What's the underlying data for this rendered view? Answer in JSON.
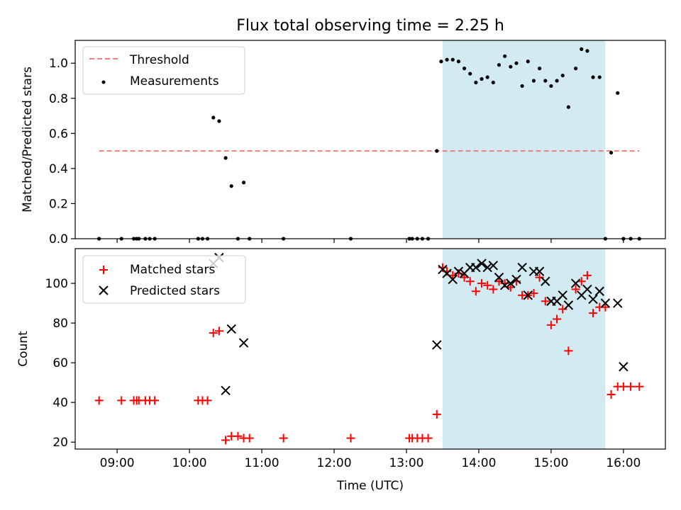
{
  "chart_data": {
    "type": "scatter",
    "title": "Flux total observing time = 2.25 h",
    "xlabel": "Time (UTC)",
    "x_unit": "hour_of_day_utc",
    "x_ticks": [
      {
        "value": 9,
        "label": "09:00"
      },
      {
        "value": 10,
        "label": "10:00"
      },
      {
        "value": 11,
        "label": "11:00"
      },
      {
        "value": 12,
        "label": "12:00"
      },
      {
        "value": 13,
        "label": "13:00"
      },
      {
        "value": 14,
        "label": "14:00"
      },
      {
        "value": 15,
        "label": "15:00"
      },
      {
        "value": 16,
        "label": "16:00"
      }
    ],
    "xlim": [
      8.42,
      16.58
    ],
    "shaded_region": {
      "x_start": 13.5,
      "x_end": 15.75,
      "color": "#add8e6"
    },
    "colors": {
      "threshold": "#f08080",
      "measurements": "#000000",
      "matched": "#ff0000",
      "predicted": "#000000",
      "shade": "#add8e6"
    },
    "panels": [
      {
        "ylabel": "Matched/Predicted stars",
        "ylim": [
          0,
          1.13
        ],
        "yticks": [
          {
            "value": 0,
            "label": "0.0"
          },
          {
            "value": 0.2,
            "label": "0.2"
          },
          {
            "value": 0.4,
            "label": "0.4"
          },
          {
            "value": 0.6,
            "label": "0.6"
          },
          {
            "value": 0.8,
            "label": "0.8"
          },
          {
            "value": 1.0,
            "label": "1.0"
          }
        ],
        "legend_position": "top-left",
        "threshold": {
          "name": "Threshold",
          "y": 0.5,
          "x_range": [
            8.75,
            16.22
          ]
        },
        "measurements": {
          "name": "Measurements",
          "x": [
            8.75,
            9.06,
            9.23,
            9.27,
            9.3,
            9.39,
            9.45,
            9.52,
            10.12,
            10.18,
            10.25,
            10.33,
            10.41,
            10.5,
            10.58,
            10.67,
            10.75,
            10.83,
            11.3,
            12.23,
            13.04,
            13.08,
            13.15,
            13.22,
            13.3,
            13.42,
            13.48,
            13.56,
            13.64,
            13.72,
            13.8,
            13.88,
            13.96,
            14.04,
            14.12,
            14.2,
            14.28,
            14.36,
            14.44,
            14.52,
            14.6,
            14.68,
            14.76,
            14.84,
            14.92,
            15.0,
            15.08,
            15.16,
            15.24,
            15.34,
            15.42,
            15.5,
            15.58,
            15.67,
            15.75,
            15.83,
            15.92,
            16.0,
            16.1,
            16.22
          ],
          "y": [
            0,
            0,
            0,
            0,
            0,
            0,
            0,
            0,
            0,
            0,
            0,
            0.69,
            0.67,
            0.46,
            0.3,
            0,
            0.32,
            0,
            0,
            0,
            0,
            0,
            0,
            0,
            0,
            0.5,
            1.01,
            1.02,
            1.02,
            1.01,
            0.97,
            0.94,
            0.89,
            0.91,
            0.92,
            0.89,
            0.99,
            1.04,
            0.98,
            1.0,
            0.87,
            1.01,
            0.9,
            0.97,
            0.9,
            0.87,
            0.9,
            0.93,
            0.75,
            0.97,
            1.08,
            1.07,
            0.92,
            0.92,
            0,
            0.49,
            0.83,
            0,
            0,
            0
          ]
        }
      },
      {
        "ylabel": "Count",
        "ylim": [
          16.5,
          117.5
        ],
        "yticks": [
          {
            "value": 20,
            "label": "20"
          },
          {
            "value": 40,
            "label": "40"
          },
          {
            "value": 60,
            "label": "60"
          },
          {
            "value": 80,
            "label": "80"
          },
          {
            "value": 100,
            "label": "100"
          }
        ],
        "legend_position": "top-left",
        "series": [
          {
            "name": "Matched stars",
            "marker": "plus",
            "x": [
              8.75,
              9.06,
              9.23,
              9.27,
              9.3,
              9.39,
              9.45,
              9.52,
              10.12,
              10.18,
              10.25,
              10.33,
              10.41,
              10.5,
              10.58,
              10.67,
              10.75,
              10.83,
              11.3,
              12.23,
              13.04,
              13.08,
              13.15,
              13.22,
              13.3,
              13.42,
              13.5,
              13.56,
              13.64,
              13.72,
              13.8,
              13.88,
              13.96,
              14.04,
              14.12,
              14.2,
              14.28,
              14.36,
              14.44,
              14.52,
              14.6,
              14.68,
              14.76,
              14.84,
              14.92,
              15.0,
              15.08,
              15.16,
              15.24,
              15.34,
              15.42,
              15.5,
              15.58,
              15.67,
              15.75,
              15.83,
              15.92,
              16.0,
              16.1,
              16.22
            ],
            "y": [
              41,
              41,
              41,
              41,
              41,
              41,
              41,
              41,
              41,
              41,
              41,
              75,
              76,
              21,
              23,
              23,
              22,
              22,
              22,
              22,
              22,
              22,
              22,
              22,
              22,
              34,
              108,
              106,
              104,
              105,
              103,
              101,
              96,
              100,
              99,
              97,
              101,
              100,
              98,
              101,
              94,
              94,
              95,
              103,
              91,
              79,
              82,
              87,
              66,
              97,
              101,
              104,
              85,
              88,
              88,
              44,
              48,
              48,
              48,
              48
            ]
          },
          {
            "name": "Predicted stars",
            "marker": "x",
            "x": [
              10.33,
              10.41,
              10.5,
              10.58,
              10.75,
              13.42,
              13.5,
              13.56,
              13.64,
              13.72,
              13.8,
              13.88,
              13.96,
              14.04,
              14.12,
              14.2,
              14.28,
              14.36,
              14.44,
              14.52,
              14.6,
              14.68,
              14.76,
              14.84,
              14.92,
              15.0,
              15.08,
              15.16,
              15.24,
              15.34,
              15.42,
              15.5,
              15.58,
              15.67,
              15.75,
              15.92,
              16.0
            ],
            "y": [
              110,
              113,
              46,
              77,
              70,
              69,
              107,
              105,
              102,
              106,
              105,
              108,
              108,
              110,
              108,
              109,
              103,
              99,
              100,
              102,
              108,
              94,
              106,
              106,
              101,
              91,
              91,
              94,
              89,
              100,
              94,
              97,
              92,
              96,
              90,
              90,
              58
            ]
          }
        ]
      }
    ]
  }
}
